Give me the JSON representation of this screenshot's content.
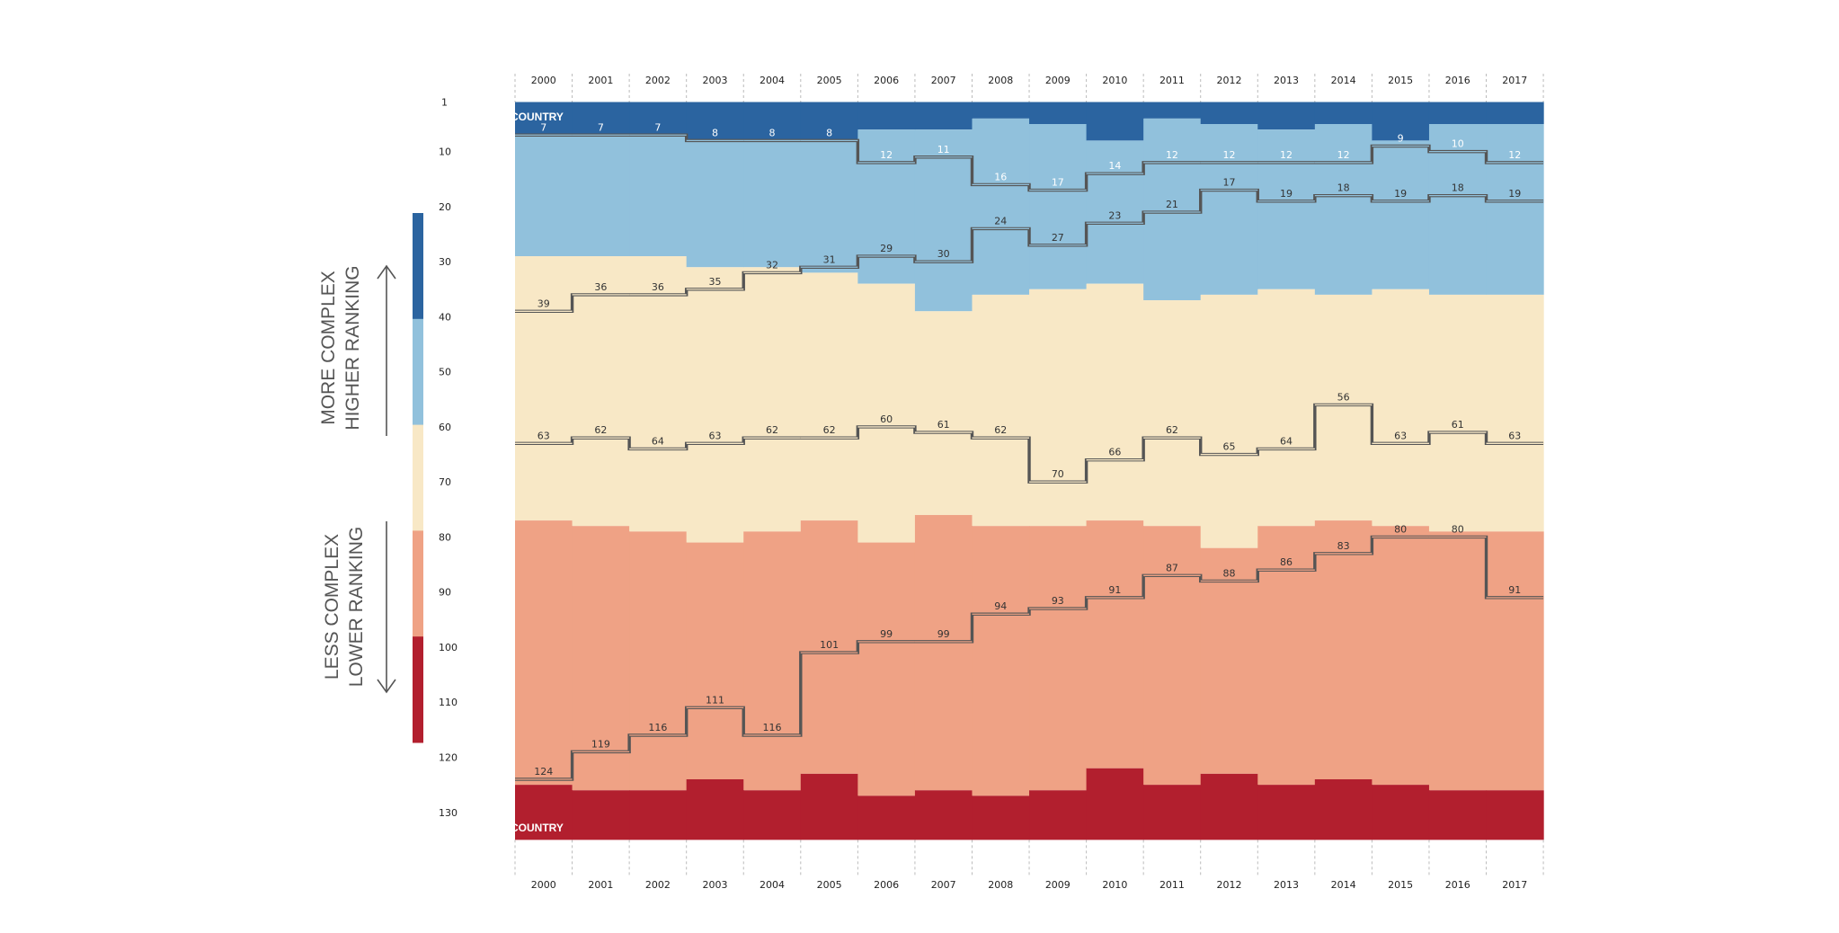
{
  "chart_data": {
    "type": "area",
    "y_axis": {
      "reversed": true,
      "ylim": [
        1,
        135
      ],
      "ticks": [
        1,
        10,
        20,
        30,
        40,
        50,
        60,
        70,
        80,
        90,
        100,
        110,
        120,
        130
      ]
    },
    "years": [
      "2000",
      "2001",
      "2002",
      "2003",
      "2004",
      "2005",
      "2006",
      "2007",
      "2008",
      "2009",
      "2010",
      "2011",
      "2012",
      "2013",
      "2014",
      "2015",
      "2016",
      "2017"
    ],
    "band_colors": [
      "#2b64a0",
      "#91c1dc",
      "#f8e8c6",
      "#efa285",
      "#b21f2e"
    ],
    "band_boundaries": [
      [
        7,
        7,
        7,
        8,
        8,
        8,
        6,
        6,
        4,
        5,
        8,
        4,
        5,
        6,
        5,
        8,
        5,
        5
      ],
      [
        29,
        29,
        29,
        31,
        31,
        32,
        34,
        39,
        36,
        35,
        34,
        37,
        36,
        35,
        36,
        35,
        36,
        36
      ],
      [
        77,
        78,
        79,
        81,
        79,
        77,
        81,
        76,
        78,
        78,
        77,
        78,
        82,
        78,
        77,
        78,
        79,
        79
      ],
      [
        125,
        126,
        126,
        124,
        126,
        123,
        127,
        126,
        127,
        126,
        122,
        125,
        123,
        125,
        124,
        125,
        126,
        126
      ]
    ],
    "series": [
      {
        "values": [
          7,
          7,
          7,
          8,
          8,
          8,
          12,
          11,
          16,
          17,
          14,
          12,
          12,
          12,
          12,
          9,
          10,
          12
        ]
      },
      {
        "values": [
          39,
          36,
          36,
          35,
          32,
          31,
          29,
          30,
          24,
          27,
          23,
          21,
          17,
          19,
          18,
          19,
          18,
          19
        ]
      },
      {
        "values": [
          63,
          62,
          64,
          63,
          62,
          62,
          60,
          61,
          62,
          70,
          66,
          62,
          65,
          64,
          56,
          63,
          61,
          63
        ]
      },
      {
        "values": [
          124,
          119,
          116,
          111,
          116,
          101,
          99,
          99,
          94,
          93,
          91,
          87,
          88,
          86,
          83,
          80,
          80,
          91
        ]
      }
    ],
    "top_band_label": "COUNTRY",
    "bottom_band_label": "COUNTRY",
    "legend_top": [
      "MORE COMPLEX",
      "HIGHER RANKING"
    ],
    "legend_bottom": [
      "LESS COMPLEX",
      "LOWER RANKING"
    ]
  }
}
